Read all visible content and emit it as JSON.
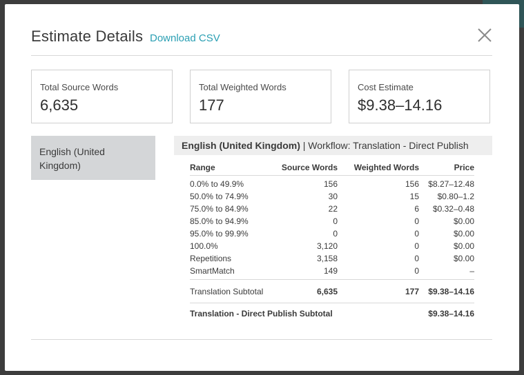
{
  "header": {
    "title": "Estimate Details",
    "download_label": "Download CSV",
    "close_icon": "close-icon"
  },
  "cards": [
    {
      "label": "Total Source Words",
      "value": "6,635"
    },
    {
      "label": "Total Weighted Words",
      "value": "177"
    },
    {
      "label": "Cost Estimate",
      "value": "$9.38–14.16"
    }
  ],
  "languages": {
    "items": [
      {
        "label": "English (United Kingdom)"
      }
    ],
    "selected": "English (United Kingdom)"
  },
  "detail": {
    "language": "English (United Kingdom)",
    "workflow": "| Workflow: Translation - Direct Publish",
    "columns": [
      "Range",
      "Source Words",
      "Weighted Words",
      "Price"
    ],
    "rows": [
      {
        "range": "0.0% to 49.9%",
        "source": "156",
        "weighted": "156",
        "price": "$8.27–12.48"
      },
      {
        "range": "50.0% to 74.9%",
        "source": "30",
        "weighted": "15",
        "price": "$0.80–1.2"
      },
      {
        "range": "75.0% to 84.9%",
        "source": "22",
        "weighted": "6",
        "price": "$0.32–0.48"
      },
      {
        "range": "85.0% to 94.9%",
        "source": "0",
        "weighted": "0",
        "price": "$0.00"
      },
      {
        "range": "95.0% to 99.9%",
        "source": "0",
        "weighted": "0",
        "price": "$0.00"
      },
      {
        "range": "100.0%",
        "source": "3,120",
        "weighted": "0",
        "price": "$0.00"
      },
      {
        "range": "Repetitions",
        "source": "3,158",
        "weighted": "0",
        "price": "$0.00"
      },
      {
        "range": "SmartMatch",
        "source": "149",
        "weighted": "0",
        "price": "–"
      }
    ],
    "subtotal": {
      "label": "Translation Subtotal",
      "source": "6,635",
      "weighted": "177",
      "price": "$9.38–14.16"
    },
    "total": {
      "label": "Translation - Direct Publish Subtotal",
      "price": "$9.38–14.16"
    }
  },
  "colors": {
    "accent": "#2a9fb3",
    "selected_bg": "#d4d6d8",
    "header_bg": "#eeeeee"
  }
}
